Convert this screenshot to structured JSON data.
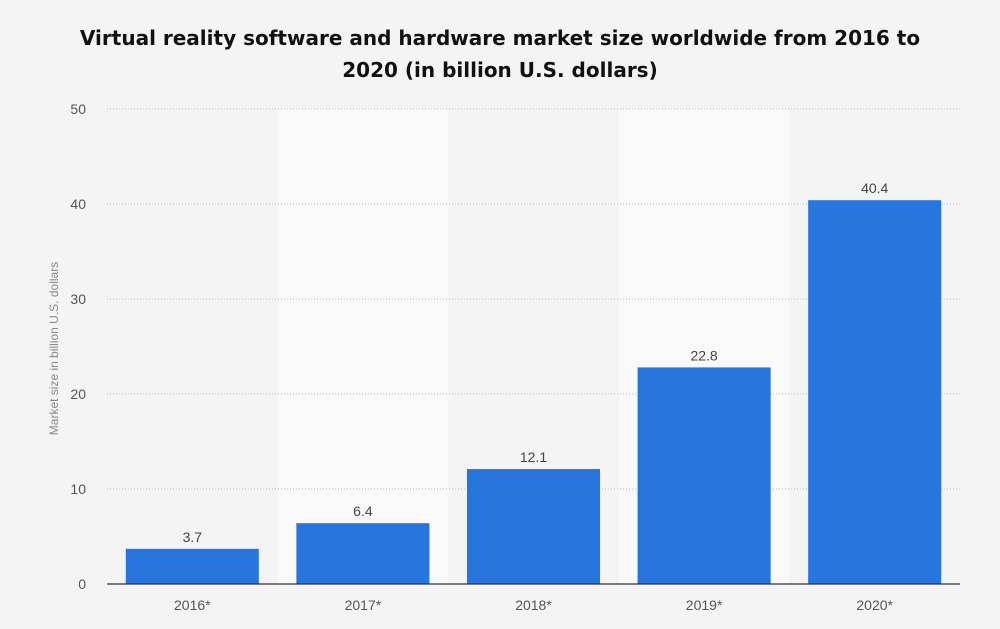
{
  "chart_data": {
    "type": "bar",
    "title": "Virtual reality software and hardware market size worldwide from 2016 to 2020 (in billion U.S. dollars)",
    "xlabel": "",
    "ylabel": "Market size in billion U.S. dollars",
    "categories": [
      "2016*",
      "2017*",
      "2018*",
      "2019*",
      "2020*"
    ],
    "values": [
      3.7,
      6.4,
      12.1,
      22.8,
      40.4
    ],
    "value_labels": [
      "3.7",
      "6.4",
      "12.1",
      "22.8",
      "40.4"
    ],
    "ylim": [
      0,
      50
    ],
    "yticks": [
      0,
      10,
      20,
      30,
      40,
      50
    ],
    "grid": true,
    "legend": "none",
    "bar_color": "#2876dd",
    "alt_band_color": "#f9f9f9",
    "background_color": "#f4f4f4"
  }
}
